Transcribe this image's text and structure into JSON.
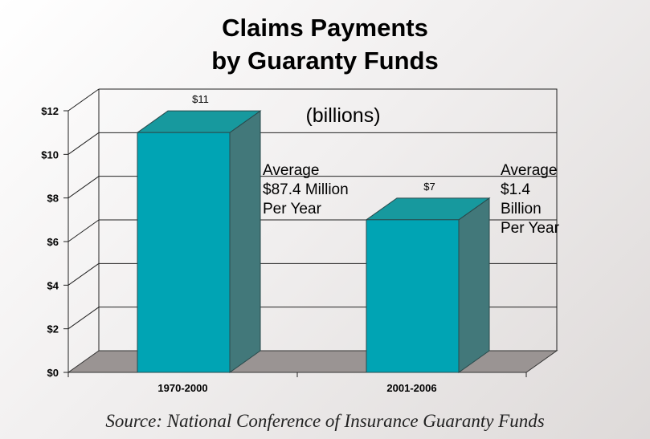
{
  "chart_data": {
    "type": "bar",
    "title": [
      "Claims Payments",
      "by Guaranty Funds"
    ],
    "subtitle": "(billions)",
    "categories": [
      "1970-2000",
      "2001-2006"
    ],
    "values": [
      11,
      7
    ],
    "data_labels": [
      "$11",
      "$7"
    ],
    "ylim": [
      0,
      12
    ],
    "yticks": [
      0,
      2,
      4,
      6,
      8,
      10,
      12
    ],
    "ytick_labels": [
      "$0",
      "$2",
      "$4",
      "$6",
      "$8",
      "$10",
      "$12"
    ],
    "grid": true,
    "style": "3d",
    "bar_color": "#00a4b4",
    "annotations": [
      [
        "Average",
        "$87.4 Million",
        "Per Year"
      ],
      [
        "Average",
        "$1.4",
        "Billion",
        "Per Year"
      ]
    ],
    "source": "Source: National Conference of Insurance Guaranty Funds"
  }
}
